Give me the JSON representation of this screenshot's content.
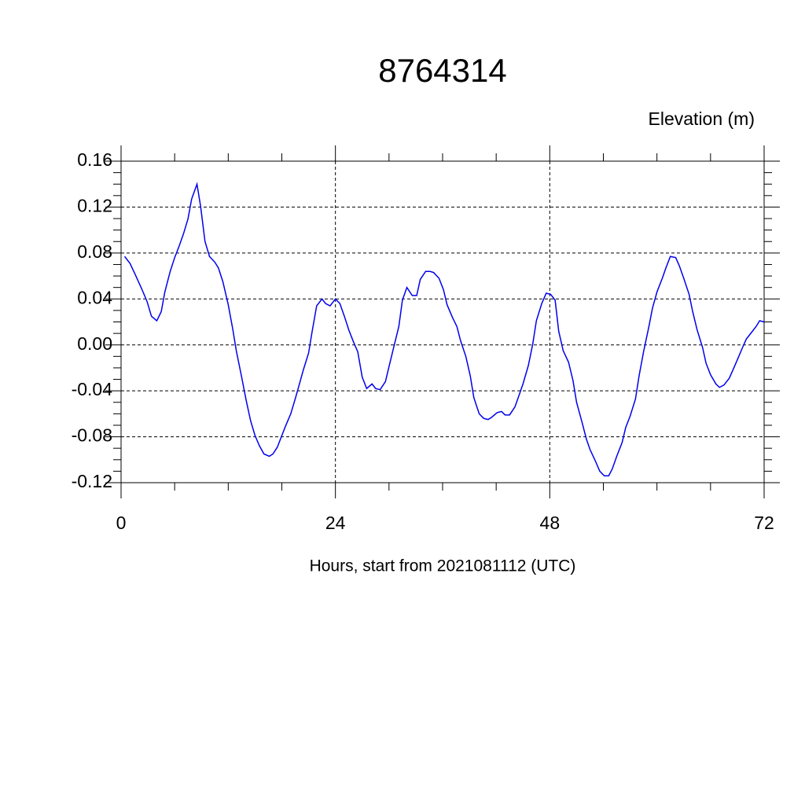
{
  "chart_data": {
    "type": "line",
    "title": "8764314",
    "ylabel": "Elevation (m)",
    "xlabel": "Hours, start from 2021081112 (UTC)",
    "xlim": [
      0,
      72
    ],
    "xticks": [
      0,
      24,
      48,
      72
    ],
    "ylim": [
      -0.12,
      0.16
    ],
    "yticks": [
      0.16,
      0.12,
      0.08,
      0.04,
      {
        "value": 0,
        "label": "0.00"
      },
      -0.04,
      -0.08,
      -0.12
    ],
    "grid": true,
    "series": [
      {
        "name": "Elevation",
        "color": "#0000ee",
        "x": [
          0.4,
          1.0,
          1.6,
          2.3,
          2.9,
          3.4,
          4.0,
          4.5,
          4.9,
          5.5,
          6.0,
          6.5,
          7.0,
          7.5,
          7.9,
          8.5,
          8.9,
          9.4,
          9.9,
          10.5,
          10.9,
          11.4,
          12.0,
          12.5,
          12.9,
          13.5,
          14.0,
          14.5,
          15.0,
          15.5,
          16.0,
          16.6,
          17.0,
          17.5,
          17.9,
          18.4,
          19.0,
          19.5,
          19.9,
          20.4,
          21.0,
          21.4,
          21.9,
          22.5,
          22.9,
          23.4,
          24.0,
          24.5,
          25.0,
          25.5,
          26.0,
          26.5,
          27.0,
          27.5,
          28.1,
          28.5,
          29.0,
          29.6,
          30.0,
          30.5,
          31.1,
          31.5,
          32.0,
          32.6,
          33.1,
          33.5,
          34.1,
          34.6,
          35.0,
          35.6,
          36.1,
          36.5,
          37.1,
          37.6,
          38.0,
          38.6,
          39.1,
          39.5,
          40.1,
          40.6,
          41.1,
          41.5,
          42.1,
          42.6,
          43.0,
          43.5,
          44.1,
          44.6,
          45.0,
          45.6,
          46.1,
          46.5,
          47.1,
          47.6,
          48.1,
          48.6,
          49.0,
          49.5,
          50.1,
          50.6,
          51.0,
          51.6,
          52.1,
          52.5,
          53.1,
          53.6,
          54.1,
          54.6,
          55.0,
          55.5,
          56.1,
          56.5,
          57.0,
          57.6,
          58.0,
          58.5,
          59.1,
          59.5,
          60.0,
          60.6,
          61.0,
          61.5,
          62.1,
          62.5,
          63.0,
          63.6,
          64.0,
          64.5,
          65.1,
          65.5,
          66.0,
          66.6,
          67.0,
          67.5,
          68.1,
          68.5,
          69.0,
          69.6,
          70.0,
          70.5,
          71.1,
          71.5,
          72.0
        ],
        "values": [
          0.077,
          0.071,
          0.061,
          0.049,
          0.038,
          0.025,
          0.021,
          0.029,
          0.046,
          0.064,
          0.076,
          0.086,
          0.097,
          0.11,
          0.127,
          0.14,
          0.121,
          0.09,
          0.077,
          0.072,
          0.067,
          0.055,
          0.035,
          0.014,
          -0.005,
          -0.028,
          -0.048,
          -0.066,
          -0.079,
          -0.088,
          -0.095,
          -0.097,
          -0.095,
          -0.089,
          -0.081,
          -0.071,
          -0.06,
          -0.047,
          -0.036,
          -0.022,
          -0.007,
          0.012,
          0.034,
          0.04,
          0.036,
          0.034,
          0.04,
          0.036,
          0.025,
          0.013,
          0.003,
          -0.006,
          -0.028,
          -0.038,
          -0.034,
          -0.038,
          -0.039,
          -0.032,
          -0.019,
          -0.003,
          0.016,
          0.039,
          0.05,
          0.043,
          0.043,
          0.057,
          0.064,
          0.064,
          0.063,
          0.058,
          0.048,
          0.035,
          0.024,
          0.016,
          0.004,
          -0.01,
          -0.027,
          -0.046,
          -0.06,
          -0.064,
          -0.065,
          -0.063,
          -0.059,
          -0.058,
          -0.061,
          -0.061,
          -0.054,
          -0.043,
          -0.034,
          -0.018,
          0.001,
          0.021,
          0.036,
          0.045,
          0.044,
          0.039,
          0.012,
          -0.005,
          -0.015,
          -0.031,
          -0.05,
          -0.067,
          -0.082,
          -0.091,
          -0.101,
          -0.11,
          -0.114,
          -0.114,
          -0.108,
          -0.097,
          -0.085,
          -0.072,
          -0.062,
          -0.047,
          -0.027,
          -0.006,
          0.016,
          0.032,
          0.046,
          0.058,
          0.067,
          0.077,
          0.076,
          0.069,
          0.058,
          0.044,
          0.029,
          0.013,
          -0.002,
          -0.016,
          -0.026,
          -0.034,
          -0.037,
          -0.035,
          -0.029,
          -0.022,
          -0.013,
          -0.002,
          0.005,
          0.01,
          0.016,
          0.021,
          0.02
        ]
      }
    ]
  }
}
